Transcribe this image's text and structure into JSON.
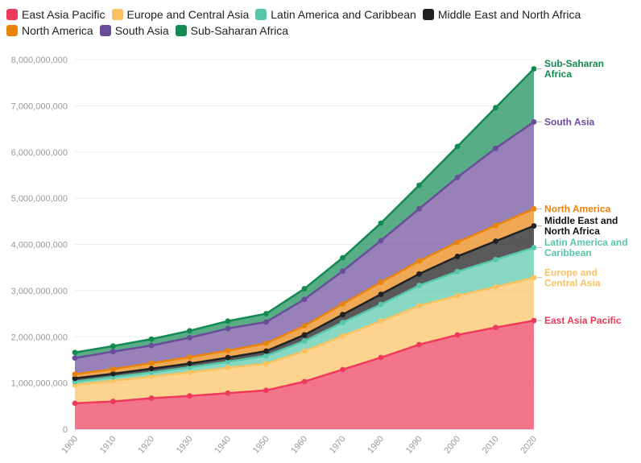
{
  "legend": [
    {
      "label": "East Asia Pacific",
      "color": "#ee3b5b"
    },
    {
      "label": "Europe and Central Asia",
      "color": "#fbc261"
    },
    {
      "label": "Latin America and Caribbean",
      "color": "#56c7a8"
    },
    {
      "label": "Middle East and North Africa",
      "color": "#222222"
    },
    {
      "label": "North America",
      "color": "#e8830b"
    },
    {
      "label": "South Asia",
      "color": "#6b4c9a"
    },
    {
      "label": "Sub-Saharan Africa",
      "color": "#138a52"
    }
  ],
  "chart_data": {
    "type": "area",
    "stacked": true,
    "x": [
      "1900",
      "1910",
      "1920",
      "1930",
      "1940",
      "1950",
      "1960",
      "1970",
      "1980",
      "1990",
      "2000",
      "2010",
      "2020"
    ],
    "ylim": [
      0,
      8000000000
    ],
    "yticks": [
      "0",
      "1,000,000,000",
      "2,000,000,000",
      "3,000,000,000",
      "4,000,000,000",
      "5,000,000,000",
      "6,000,000,000",
      "7,000,000,000",
      "8,000,000,000"
    ],
    "grid": true,
    "legend_position": "top",
    "series": [
      {
        "name": "East Asia Pacific",
        "color": "#ee3b5b",
        "end_label": [
          "East Asia Pacific"
        ],
        "values": [
          560000000,
          600000000,
          670000000,
          720000000,
          780000000,
          840000000,
          1030000000,
          1290000000,
          1550000000,
          1830000000,
          2040000000,
          2200000000,
          2350000000
        ]
      },
      {
        "name": "Europe and Central Asia",
        "color": "#fbc261",
        "end_label": [
          "Europe and",
          "Central Asia"
        ],
        "values": [
          400000000,
          450000000,
          470000000,
          510000000,
          550000000,
          580000000,
          660000000,
          730000000,
          790000000,
          840000000,
          850000000,
          880000000,
          930000000
        ]
      },
      {
        "name": "Latin America and Caribbean",
        "color": "#56c7a8",
        "end_label": [
          "Latin America and",
          "Caribbean"
        ],
        "values": [
          70000000,
          80000000,
          90000000,
          110000000,
          130000000,
          170000000,
          220000000,
          290000000,
          360000000,
          440000000,
          520000000,
          590000000,
          650000000
        ]
      },
      {
        "name": "Middle East and North Africa",
        "color": "#222222",
        "end_label": [
          "Middle East and",
          "North Africa"
        ],
        "values": [
          70000000,
          70000000,
          80000000,
          80000000,
          90000000,
          100000000,
          130000000,
          170000000,
          220000000,
          250000000,
          330000000,
          400000000,
          470000000
        ]
      },
      {
        "name": "North America",
        "color": "#e8830b",
        "end_label": [
          "North America"
        ],
        "values": [
          90000000,
          100000000,
          120000000,
          140000000,
          150000000,
          170000000,
          200000000,
          230000000,
          260000000,
          280000000,
          310000000,
          340000000,
          370000000
        ]
      },
      {
        "name": "South Asia",
        "color": "#6b4c9a",
        "end_label": [
          "South Asia"
        ],
        "values": [
          350000000,
          380000000,
          380000000,
          420000000,
          480000000,
          460000000,
          570000000,
          710000000,
          900000000,
          1130000000,
          1400000000,
          1670000000,
          1880000000
        ]
      },
      {
        "name": "Sub-Saharan Africa",
        "color": "#138a52",
        "end_label": [
          "Sub-Saharan",
          "Africa"
        ],
        "values": [
          120000000,
          120000000,
          140000000,
          150000000,
          160000000,
          180000000,
          230000000,
          290000000,
          380000000,
          510000000,
          670000000,
          880000000,
          1150000000
        ]
      }
    ]
  }
}
